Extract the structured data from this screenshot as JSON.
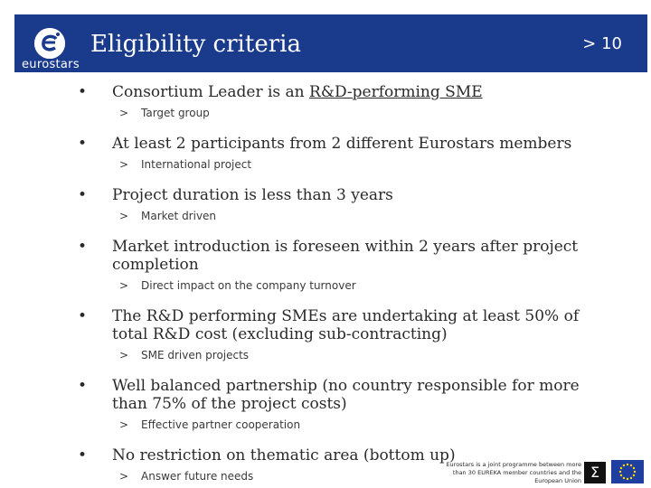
{
  "header": {
    "title": "Eligibility criteria",
    "page_label": "> 10",
    "logo_text": "eurostars",
    "band_color": "#1a3a8c"
  },
  "bullets": [
    {
      "main_prefix": "Consortium Leader is an ",
      "main_underlined": "R&D-performing SME",
      "sub": "Target group"
    },
    {
      "main": "At least 2 participants from 2 different Eurostars members",
      "sub": "International project"
    },
    {
      "main": "Project duration is less than 3 years",
      "sub": "Market driven"
    },
    {
      "main": "Market introduction is foreseen within 2 years after project completion",
      "sub": "Direct impact on the company turnover"
    },
    {
      "main": "The R&D performing SMEs are undertaking at least 50% of total R&D cost (excluding sub-contracting)",
      "sub": "SME driven projects"
    },
    {
      "main": "Well balanced partnership (no country responsible for more than 75% of the project costs)",
      "sub": "Effective partner cooperation"
    },
    {
      "main": "No restriction on thematic area (bottom up)",
      "sub": "Answer future needs"
    }
  ],
  "bullet_symbol": "•",
  "sub_symbol": ">",
  "footer": {
    "note": "Eurostars is a joint programme between more than 30 EUREKA member countries and the European Union",
    "eureka_logo_icon": "eureka-logo-icon",
    "eu_flag_icon": "eu-flag-icon"
  }
}
